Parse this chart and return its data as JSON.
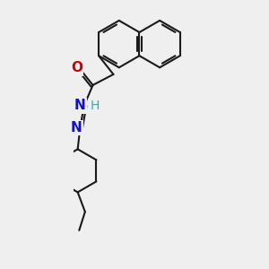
{
  "bg_color": "#efefef",
  "bond_color": "#1a1a1a",
  "bond_width": 1.5,
  "atom_labels": {
    "O": {
      "color": "#cc0000",
      "fontsize": 11,
      "fontweight": "bold"
    },
    "N": {
      "color": "#1111cc",
      "fontsize": 11,
      "fontweight": "bold"
    },
    "H": {
      "color": "#33aaaa",
      "fontsize": 10,
      "fontweight": "normal"
    }
  }
}
